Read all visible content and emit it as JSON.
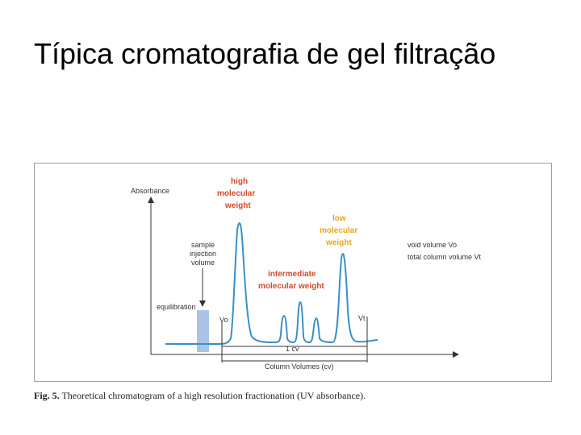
{
  "slide": {
    "title": "Típica cromatografia de gel filtração"
  },
  "figure": {
    "y_axis_label": "Absorbance",
    "x_axis_label": "Column Volumes (cv)",
    "one_cv_label": "1 cv",
    "high_mw_label": [
      "high",
      "molecular",
      "weight"
    ],
    "intermediate_mw_label": [
      "intermediate",
      "molecular weight"
    ],
    "low_mw_label": [
      "low",
      "molecular",
      "weight"
    ],
    "sample_injection_label": [
      "sample",
      "injection",
      "volume"
    ],
    "equilibration_label": "equilibration",
    "vo_label": "Vo",
    "vt_label": "Vt",
    "void_volume_label": "void volume Vo",
    "total_volume_label": "total column volume Vt",
    "caption_prefix": "Fig. 5.",
    "caption_text": "Theoretical chromatogram of a high resolution fractionation (UV absorbance).",
    "colors": {
      "curve": "#3a8fc8",
      "injection_bar": "#a9c4e6",
      "high_label": "#d14a2a",
      "low_label": "#e3a81b"
    }
  }
}
